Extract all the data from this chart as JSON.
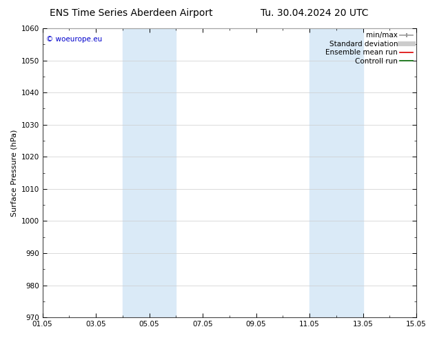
{
  "title_left": "ENS Time Series Aberdeen Airport",
  "title_right": "Tu. 30.04.2024 20 UTC",
  "ylabel": "Surface Pressure (hPa)",
  "ylim": [
    970,
    1060
  ],
  "yticks": [
    970,
    980,
    990,
    1000,
    1010,
    1020,
    1030,
    1040,
    1050,
    1060
  ],
  "xlim_start": 0.0,
  "xlim_end": 14.0,
  "xtick_labels": [
    "01.05",
    "03.05",
    "05.05",
    "07.05",
    "09.05",
    "11.05",
    "13.05",
    "15.05"
  ],
  "xtick_positions": [
    0,
    2,
    4,
    6,
    8,
    10,
    12,
    14
  ],
  "shaded_regions": [
    {
      "x_start": 3.0,
      "x_end": 5.0,
      "color": "#daeaf7"
    },
    {
      "x_start": 10.0,
      "x_end": 12.0,
      "color": "#daeaf7"
    }
  ],
  "copyright_text": "© woeurope.eu",
  "copyright_color": "#0000cc",
  "legend_entries": [
    {
      "label": "min/max",
      "color": "#999999",
      "linestyle": "-",
      "linewidth": 1.2
    },
    {
      "label": "Standard deviation",
      "color": "#cccccc",
      "linestyle": "-",
      "linewidth": 5
    },
    {
      "label": "Ensemble mean run",
      "color": "#dd0000",
      "linestyle": "-",
      "linewidth": 1.2
    },
    {
      "label": "Controll run",
      "color": "#006600",
      "linestyle": "-",
      "linewidth": 1.2
    }
  ],
  "background_color": "#ffffff",
  "grid_color": "#cccccc",
  "title_fontsize": 10,
  "label_fontsize": 8,
  "tick_fontsize": 7.5,
  "legend_fontsize": 7.5
}
